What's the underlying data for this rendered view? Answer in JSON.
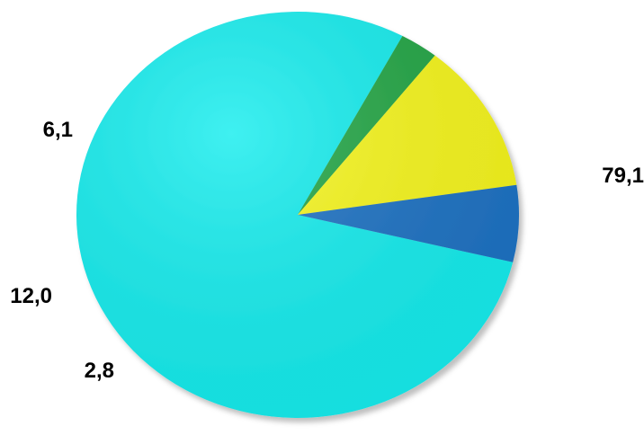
{
  "chart_data": {
    "type": "pie",
    "title": "",
    "slices": [
      {
        "label": "79,1",
        "value": 79.1,
        "color": "#15EDEE"
      },
      {
        "label": "2,8",
        "value": 2.8,
        "color": "#22A645"
      },
      {
        "label": "12,0",
        "value": 12.0,
        "color": "#F7F71C"
      },
      {
        "label": "6,1",
        "value": 6.1,
        "color": "#1D72C4"
      }
    ],
    "legend": false
  }
}
